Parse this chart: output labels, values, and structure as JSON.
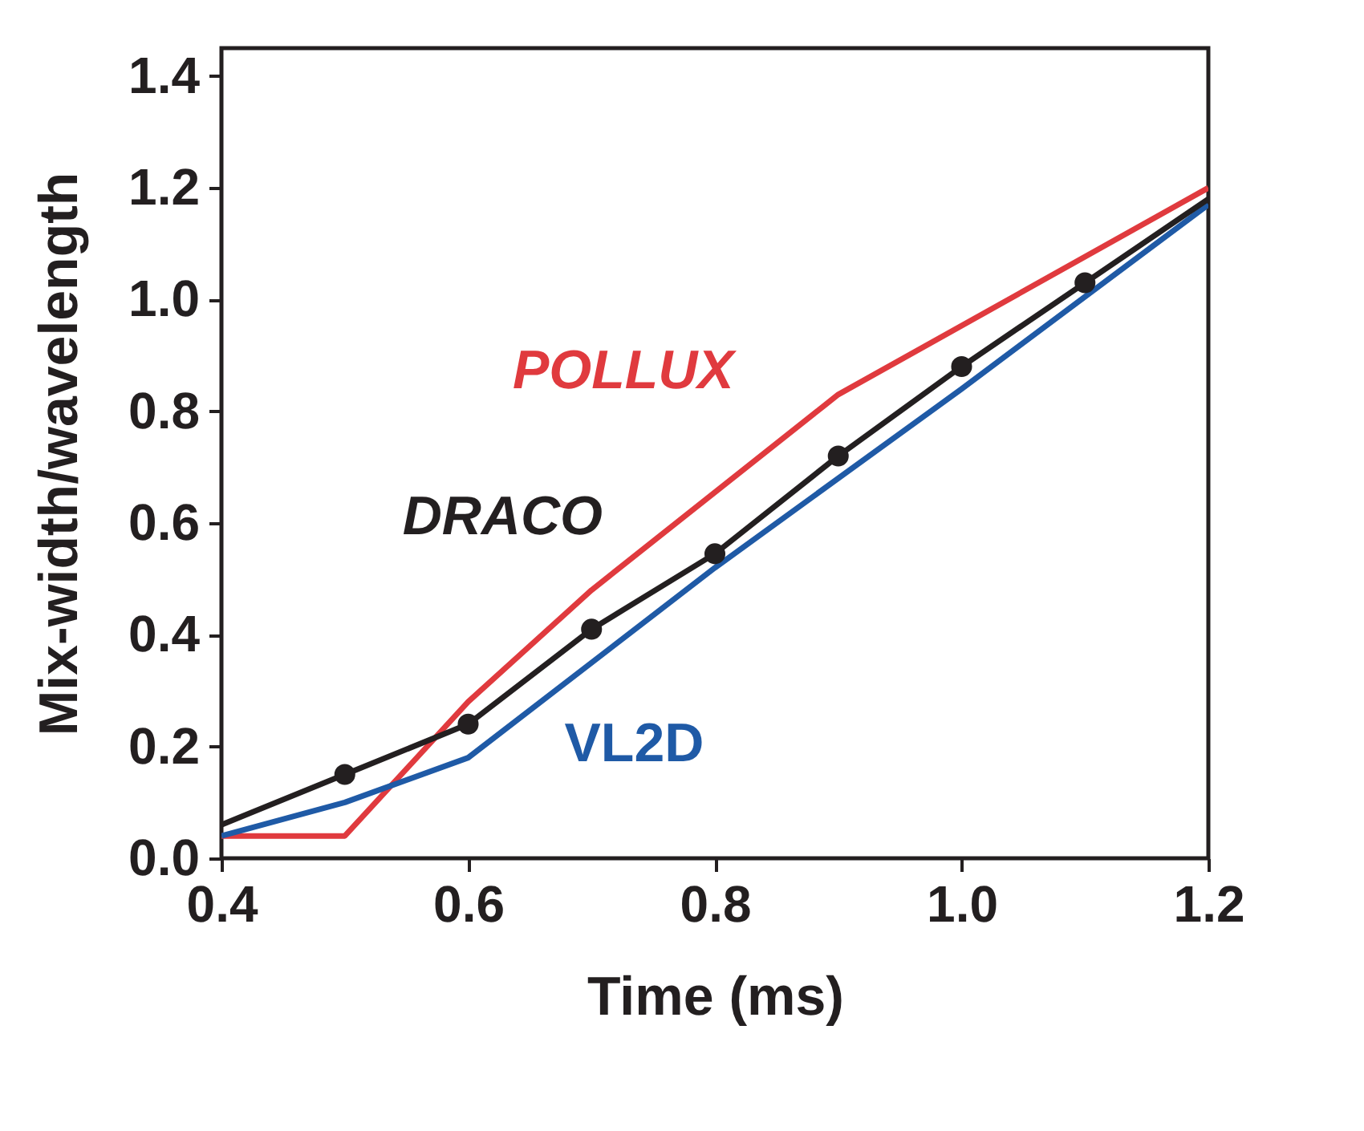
{
  "chart_data": {
    "type": "line",
    "xlabel": "Time (ms)",
    "ylabel": "Mix-width/wavelength",
    "xlim": [
      0.4,
      1.2
    ],
    "xticks": [
      0.4,
      0.6,
      0.8,
      {
        "value": 1,
        "label": "1.0"
      },
      1.2
    ],
    "ylim": [
      0.0,
      1.45
    ],
    "yticks": [
      {
        "value": 0,
        "label": "0.0"
      },
      0.2,
      0.4,
      0.6,
      0.8,
      {
        "value": 1,
        "label": "1.0"
      },
      1.2,
      1.4
    ],
    "grid": false,
    "legend": false,
    "line_style": "solid",
    "series": [
      {
        "name": "POLLUX",
        "color": "#e03a3e",
        "x": [
          0.4,
          0.5,
          0.6,
          0.7,
          0.9,
          1.2
        ],
        "values": [
          0.04,
          0.04,
          0.28,
          0.48,
          0.83,
          1.2
        ]
      },
      {
        "name": "VL2D",
        "color": "#1f5aa6",
        "x": [
          0.4,
          0.5,
          0.6,
          0.8,
          1.0,
          1.2
        ],
        "values": [
          0.04,
          0.1,
          0.18,
          0.52,
          0.84,
          1.17
        ]
      },
      {
        "name": "DRACO",
        "color": "#231f20",
        "x": [
          0.4,
          0.5,
          0.6,
          0.7,
          0.8,
          0.9,
          1.0,
          1.1,
          1.2
        ],
        "values": [
          0.06,
          0.15,
          0.24,
          0.41,
          0.545,
          0.72,
          0.88,
          1.03,
          1.18
        ]
      },
      {
        "type": "scatter",
        "marker": "circle",
        "color": "#231f20",
        "x": [
          0.5,
          0.6,
          0.7,
          0.8,
          0.9,
          1.0,
          1.1
        ],
        "values": [
          0.15,
          0.24,
          0.41,
          0.545,
          0.72,
          0.88,
          1.03
        ]
      }
    ]
  }
}
